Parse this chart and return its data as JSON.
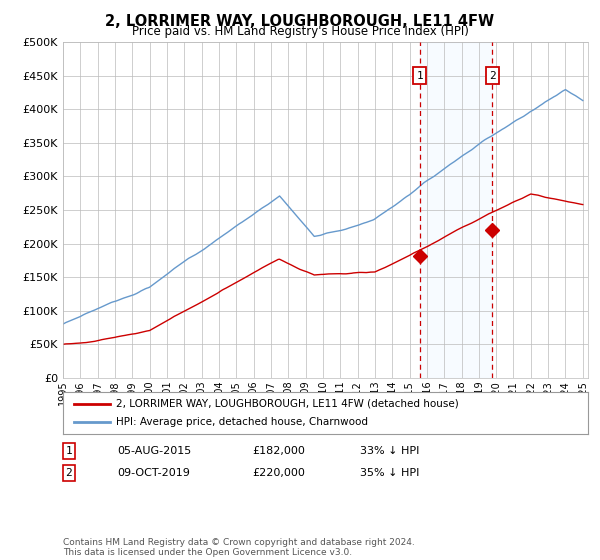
{
  "title": "2, LORRIMER WAY, LOUGHBOROUGH, LE11 4FW",
  "subtitle": "Price paid vs. HM Land Registry's House Price Index (HPI)",
  "legend_label_red": "2, LORRIMER WAY, LOUGHBOROUGH, LE11 4FW (detached house)",
  "legend_label_blue": "HPI: Average price, detached house, Charnwood",
  "transaction1_date": "05-AUG-2015",
  "transaction1_price": 182000,
  "transaction1_hpi": "33% ↓ HPI",
  "transaction2_date": "09-OCT-2019",
  "transaction2_price": 220000,
  "transaction2_hpi": "35% ↓ HPI",
  "footer": "Contains HM Land Registry data © Crown copyright and database right 2024.\nThis data is licensed under the Open Government Licence v3.0.",
  "red_color": "#cc0000",
  "blue_color": "#6699cc",
  "shade_color": "#ddeeff",
  "grid_color": "#bbbbbb",
  "background_color": "#ffffff",
  "ylim_max": 500000,
  "ylim_min": 0,
  "year_start": 1995,
  "year_end": 2025,
  "transaction1_year": 2015.6,
  "transaction2_year": 2019.77
}
